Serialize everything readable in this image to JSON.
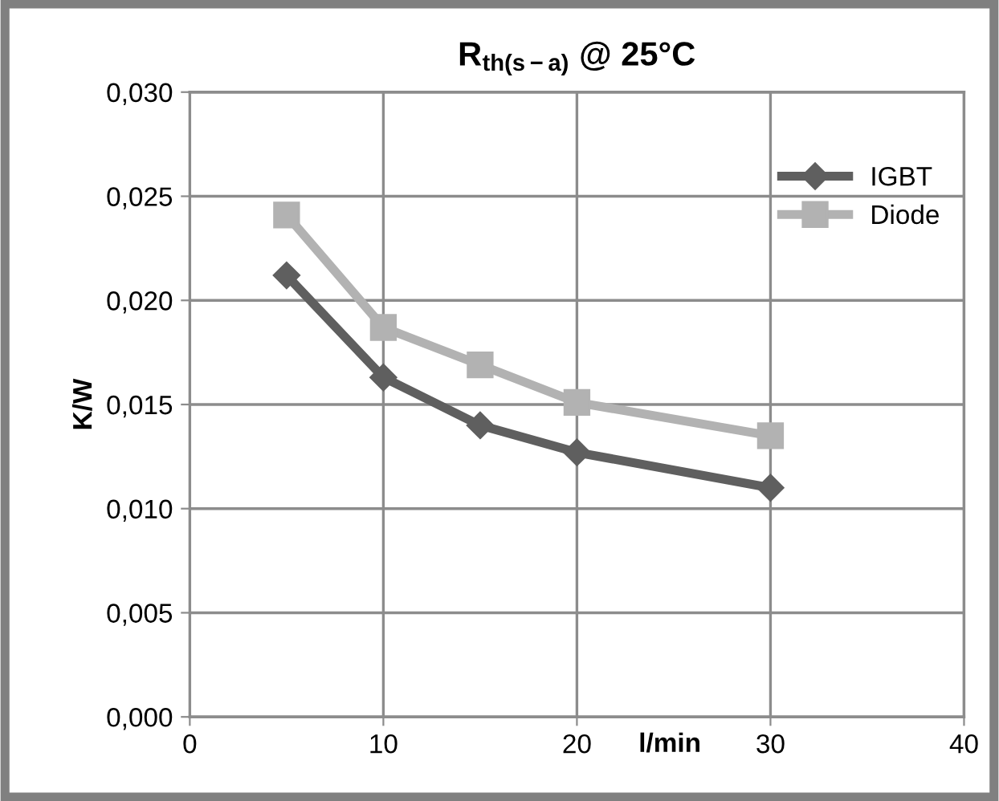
{
  "chart_data": {
    "type": "line",
    "title": "R$_{th(s−a)}$ @ 25°C",
    "xlabel": "l/min",
    "ylabel": "K/W",
    "x": [
      5,
      10,
      15,
      20,
      30
    ],
    "series": [
      {
        "name": "IGBT",
        "color": "#5f5f5f",
        "marker": "diamond",
        "values": [
          0.0212,
          0.0163,
          0.014,
          0.0127,
          0.011
        ]
      },
      {
        "name": "Diode",
        "color": "#b2b2b2",
        "marker": "square",
        "values": [
          0.0241,
          0.0187,
          0.0169,
          0.0151,
          0.0135
        ]
      }
    ],
    "xlim": [
      0,
      40
    ],
    "xticks": [
      0,
      10,
      20,
      30,
      40
    ],
    "ylim": [
      0,
      0.03
    ],
    "yticks": [
      {
        "value": 0,
        "label": "0,000"
      },
      {
        "value": 0.005,
        "label": "0,005"
      },
      {
        "value": 0.01,
        "label": "0,010"
      },
      {
        "value": 0.015,
        "label": "0,015"
      },
      {
        "value": 0.02,
        "label": "0,020"
      },
      {
        "value": 0.025,
        "label": "0,025"
      },
      {
        "value": 0.03,
        "label": "0,030"
      }
    ],
    "grid": true,
    "legend": "top right",
    "line_style": "solid"
  }
}
